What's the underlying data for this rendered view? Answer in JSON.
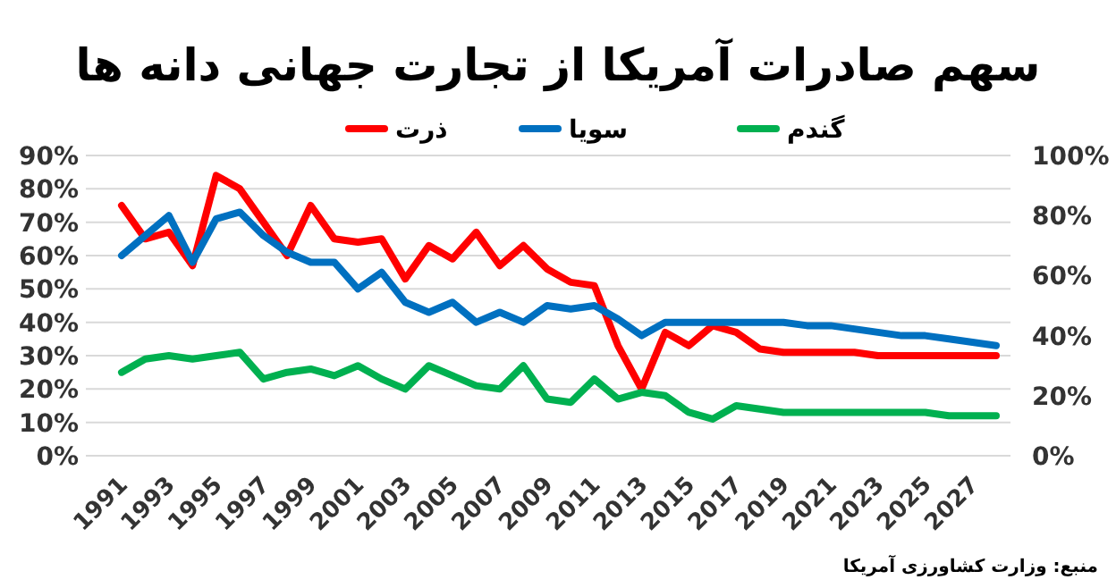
{
  "chart_data": {
    "type": "line",
    "title": "سهم صادرات آمریکا از تجارت جهانی دانه ها",
    "categories": [
      "1991",
      null,
      "1993",
      null,
      "1995",
      null,
      "1997",
      null,
      "1999",
      null,
      "2001",
      null,
      "2003",
      null,
      "2005",
      null,
      "2007",
      null,
      "2009",
      null,
      "2011",
      null,
      "2013",
      null,
      "2015",
      null,
      "2017",
      null,
      "2019",
      null,
      "2021",
      null,
      "2023",
      null,
      "2025",
      null,
      "2027",
      null
    ],
    "series": [
      {
        "name": "ذرت",
        "color": "#ff0000",
        "values": [
          75,
          65,
          67,
          57,
          84,
          80,
          70,
          60,
          75,
          65,
          64,
          65,
          53,
          63,
          59,
          67,
          57,
          63,
          56,
          52,
          51,
          33,
          20,
          37,
          33,
          39,
          37,
          32,
          31,
          31,
          31,
          31,
          30,
          30,
          30,
          30,
          30,
          30
        ]
      },
      {
        "name": "سویا",
        "color": "#0070c0",
        "values": [
          60,
          66,
          72,
          58,
          71,
          73,
          66,
          61,
          58,
          58,
          50,
          55,
          46,
          43,
          46,
          40,
          43,
          40,
          45,
          44,
          45,
          41,
          36,
          40,
          40,
          40,
          40,
          40,
          40,
          39,
          39,
          38,
          37,
          36,
          36,
          35,
          34,
          33
        ]
      },
      {
        "name": "گندم",
        "color": "#00b050",
        "values": [
          25,
          29,
          30,
          29,
          30,
          31,
          23,
          25,
          26,
          24,
          27,
          23,
          20,
          27,
          24,
          21,
          20,
          27,
          17,
          16,
          23,
          17,
          19,
          18,
          13,
          11,
          15,
          14,
          13,
          13,
          13,
          13,
          13,
          13,
          13,
          12,
          12,
          12
        ]
      }
    ],
    "ylim": [
      0,
      90
    ],
    "yticks": [
      {
        "value": 0,
        "label": "0%"
      },
      {
        "value": 10,
        "label": "10%"
      },
      {
        "value": 20,
        "label": "20%"
      },
      {
        "value": 30,
        "label": "30%"
      },
      {
        "value": 40,
        "label": "40%"
      },
      {
        "value": 50,
        "label": "50%"
      },
      {
        "value": 60,
        "label": "60%"
      },
      {
        "value": 70,
        "label": "70%"
      },
      {
        "value": 80,
        "label": "80%"
      },
      {
        "value": 90,
        "label": "90%"
      }
    ],
    "y2lim": [
      0,
      100
    ],
    "y2ticks": [
      {
        "value": 0,
        "label": "0%"
      },
      {
        "value": 20,
        "label": "20%"
      },
      {
        "value": 40,
        "label": "40%"
      },
      {
        "value": 60,
        "label": "60%"
      },
      {
        "value": 80,
        "label": "80%"
      },
      {
        "value": 100,
        "label": "100%"
      }
    ],
    "grid": "y",
    "legend": "top",
    "annotations": [
      "منبع: وزارت کشاورزی آمریکا"
    ]
  }
}
